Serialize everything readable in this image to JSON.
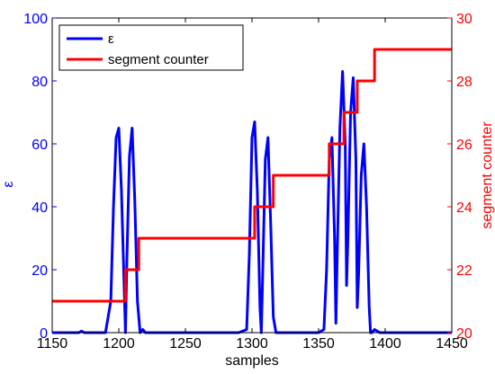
{
  "chart_data": {
    "type": "line",
    "xlabel": "samples",
    "ylabel_left": "ε",
    "ylabel_right": "segment counter",
    "xlim": [
      1150,
      1450
    ],
    "ylim_left": [
      0,
      100
    ],
    "ylim_right": [
      20,
      30
    ],
    "xticks": [
      "1150",
      "1200",
      "1250",
      "1300",
      "1350",
      "1400",
      "1450"
    ],
    "yticks_left": [
      "0",
      "20",
      "40",
      "60",
      "80",
      "100"
    ],
    "yticks_right": [
      "20",
      "22",
      "24",
      "26",
      "28",
      "30"
    ],
    "grid": false,
    "legend_position": "top-left",
    "legend": [
      {
        "label": "ε",
        "color": "#0000ff"
      },
      {
        "label": "segment counter",
        "color": "#ff0000"
      }
    ],
    "colors": {
      "left_axis": "#0000ff",
      "right_axis": "#ff0000",
      "frame": "#000000"
    },
    "series": [
      {
        "name": "ε",
        "axis": "left",
        "color": "#0000ff",
        "x": [
          1150,
          1170,
          1172,
          1174,
          1190,
          1194,
          1196,
          1198,
          1200,
          1202,
          1204,
          1205,
          1206,
          1208,
          1210,
          1212,
          1214,
          1216,
          1218,
          1220,
          1290,
          1296,
          1298,
          1300,
          1302,
          1304,
          1306,
          1307,
          1308,
          1310,
          1312,
          1314,
          1316,
          1318,
          1350,
          1354,
          1356,
          1358,
          1360,
          1362,
          1363,
          1364,
          1366,
          1368,
          1370,
          1371,
          1372,
          1374,
          1376,
          1378,
          1379,
          1380,
          1382,
          1384,
          1386,
          1388,
          1389,
          1390,
          1392,
          1394,
          1396,
          1398,
          1450
        ],
        "y": [
          0,
          0,
          0.5,
          0,
          0,
          10,
          40,
          62,
          65,
          45,
          15,
          0,
          22,
          56,
          65,
          42,
          10,
          0,
          1,
          0,
          0,
          1,
          25,
          62,
          67,
          45,
          8,
          0,
          18,
          55,
          62,
          35,
          5,
          0,
          0,
          1,
          20,
          55,
          62,
          30,
          3,
          25,
          65,
          83,
          60,
          15,
          30,
          70,
          81,
          55,
          8,
          18,
          50,
          60,
          40,
          8,
          0,
          0,
          1,
          0.5,
          0,
          0,
          0
        ]
      },
      {
        "name": "segment counter",
        "axis": "right",
        "color": "#ff0000",
        "x": [
          1150,
          1205,
          1205,
          1211,
          1211,
          1215,
          1215,
          1302,
          1302,
          1305,
          1305,
          1311,
          1311,
          1316,
          1316,
          1358,
          1358,
          1363,
          1363,
          1369,
          1369,
          1374,
          1374,
          1379,
          1379,
          1384,
          1384,
          1392,
          1392,
          1450
        ],
        "y": [
          21,
          21,
          22,
          22,
          22,
          22,
          23,
          23,
          24,
          24,
          24,
          24,
          24,
          24,
          25,
          25,
          26,
          26,
          26,
          26,
          27,
          27,
          27,
          27,
          28,
          28,
          28,
          28,
          29,
          29
        ]
      }
    ]
  }
}
